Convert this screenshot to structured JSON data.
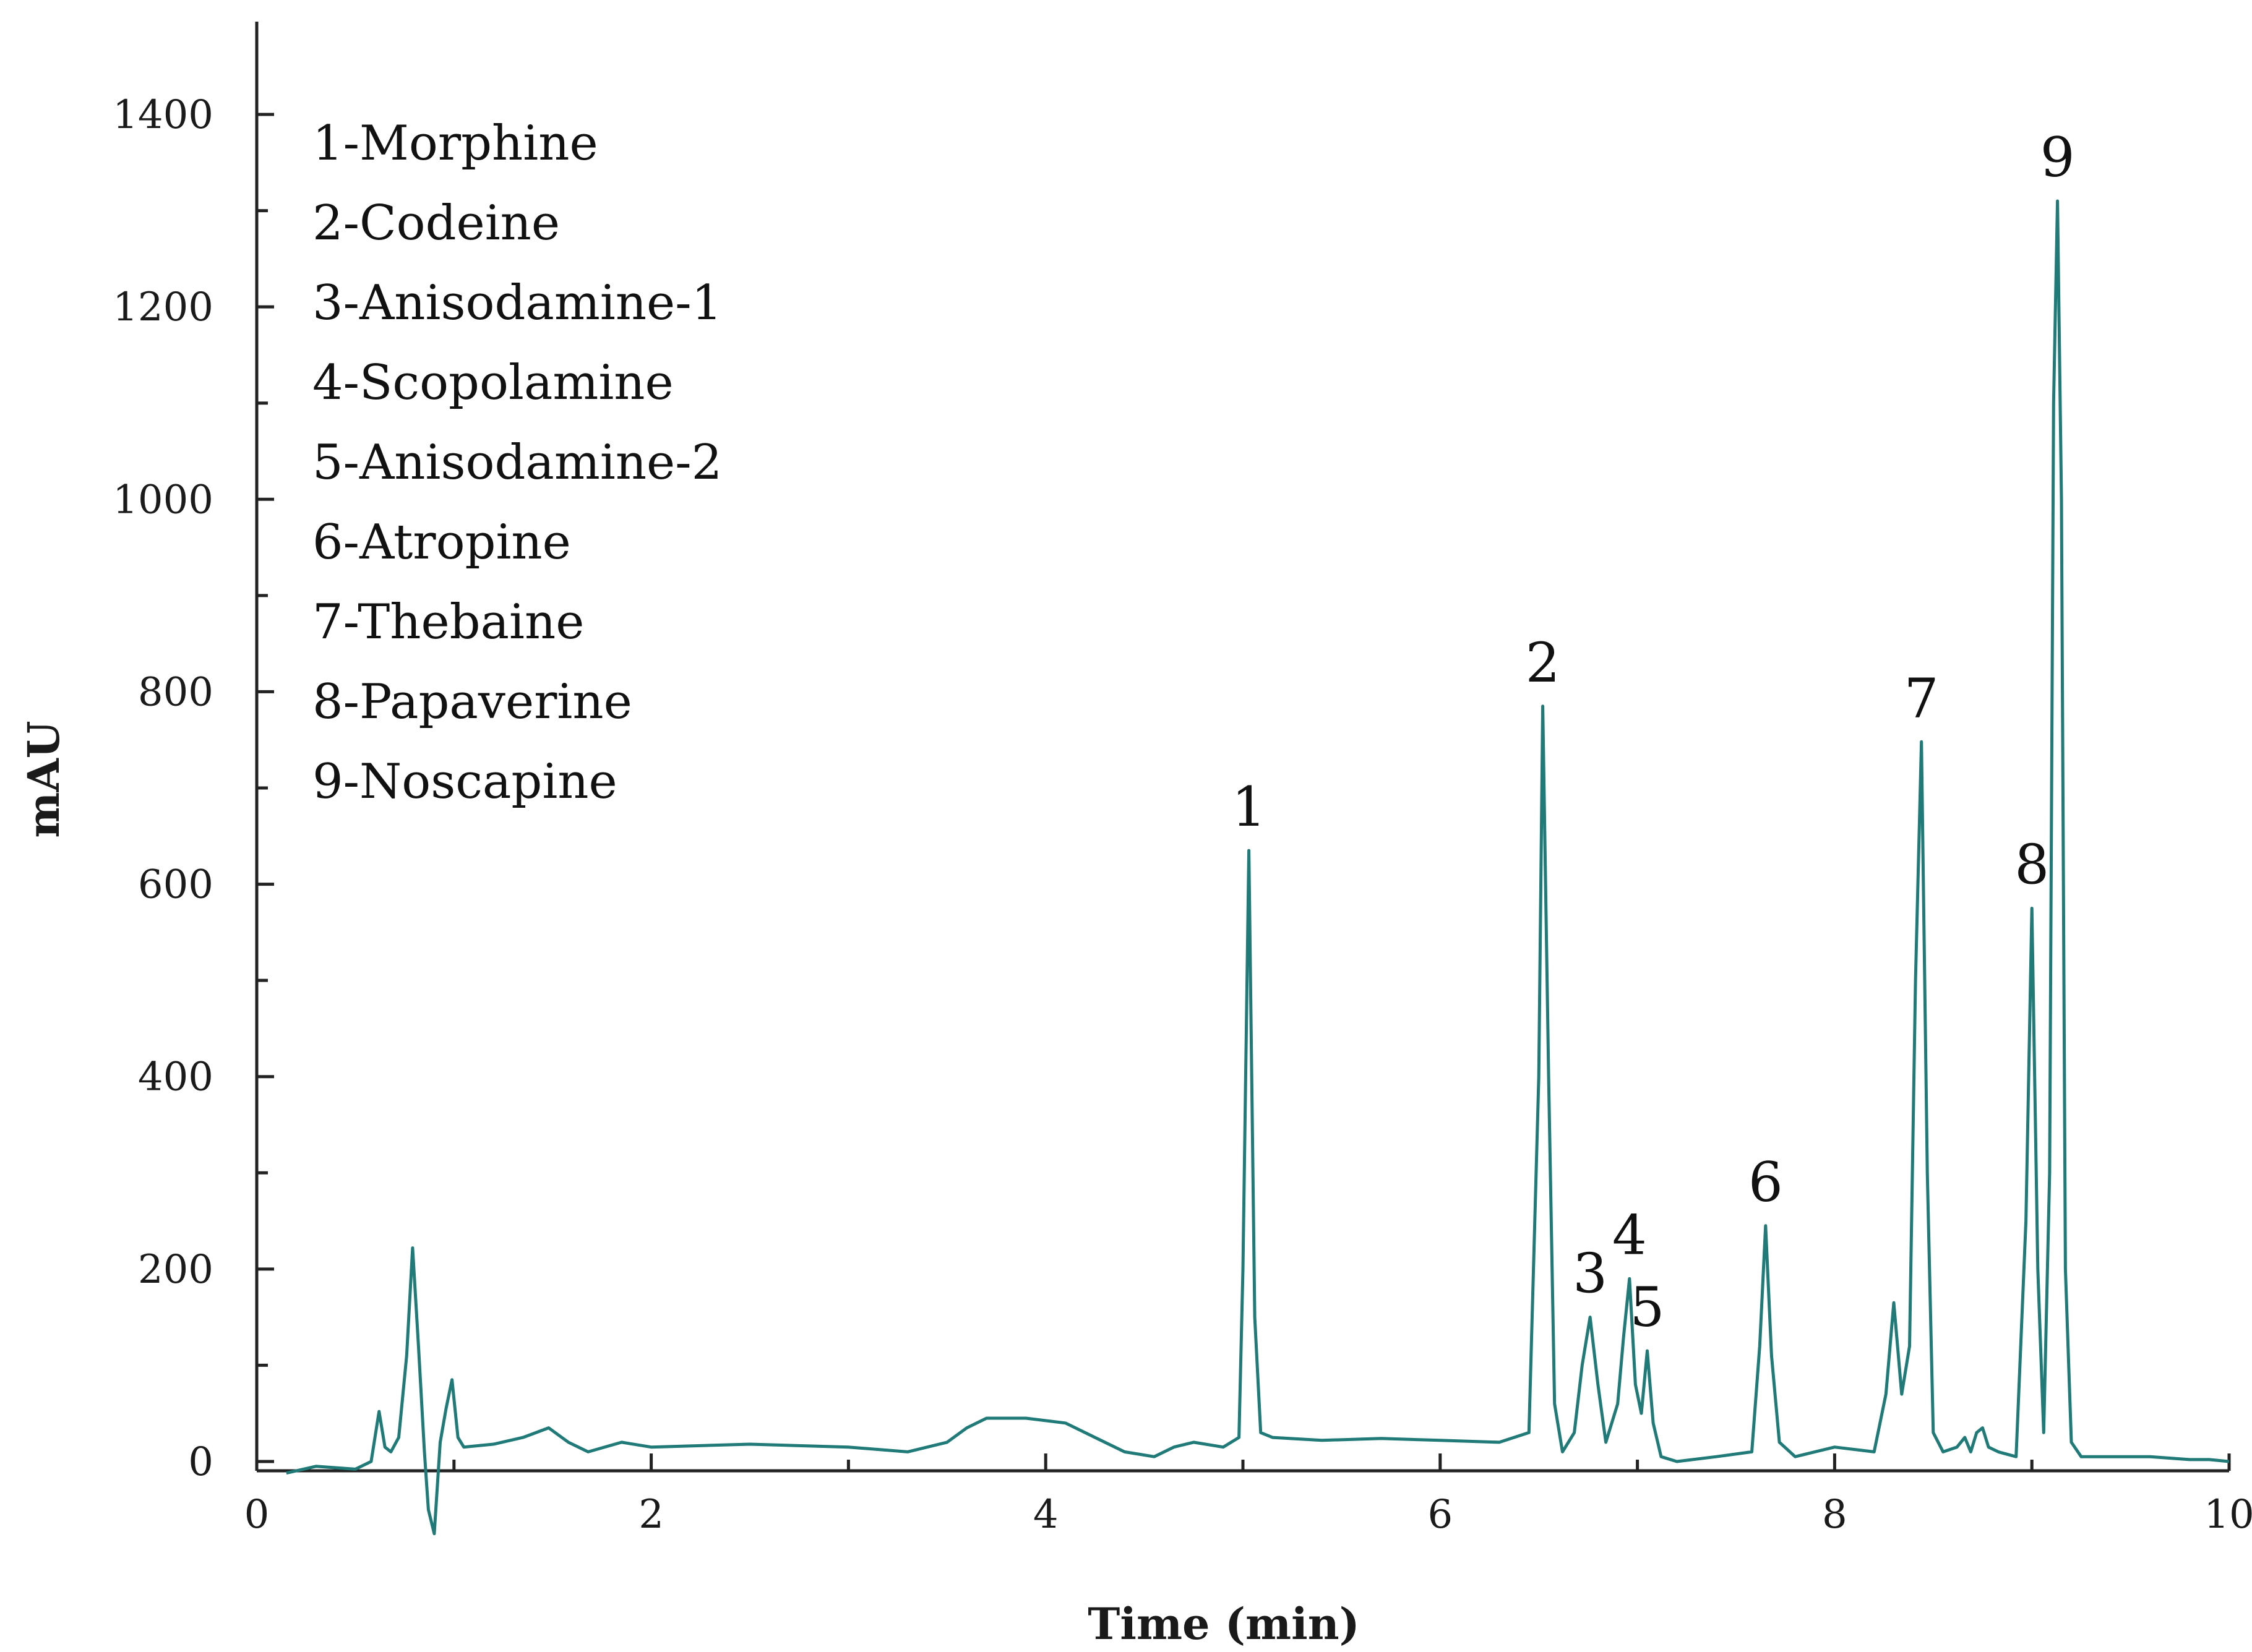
{
  "chart_data": {
    "type": "line",
    "title": "",
    "xlabel": "Time (min)",
    "ylabel": "mAU",
    "xlim": [
      0,
      10
    ],
    "ylim": [
      -10,
      1500
    ],
    "x_ticks": [
      0,
      2,
      4,
      6,
      8,
      10
    ],
    "x_minor_step": 1,
    "y_ticks": [
      0,
      200,
      400,
      600,
      800,
      1000,
      1200,
      1400
    ],
    "y_minor_step": 100,
    "line_color": "#1f7a78",
    "grid": false,
    "legend": {
      "placement": "top-left",
      "entries": [
        "1-Morphine",
        "2-Codeine",
        "3-Anisodamine-1",
        "4-Scopolamine",
        "5-Anisodamine-2",
        "6-Atropine",
        "7-Thebaine",
        "8-Papaverine",
        "9-Noscapine"
      ]
    },
    "peaks": [
      {
        "label": "1",
        "x": 5.03,
        "y": 635
      },
      {
        "label": "2",
        "x": 6.52,
        "y": 785
      },
      {
        "label": "3",
        "x": 6.76,
        "y": 150
      },
      {
        "label": "4",
        "x": 6.96,
        "y": 190
      },
      {
        "label": "5",
        "x": 7.05,
        "y": 115
      },
      {
        "label": "6",
        "x": 7.65,
        "y": 245
      },
      {
        "label": "7",
        "x": 8.44,
        "y": 748
      },
      {
        "label": "8",
        "x": 9.0,
        "y": 575
      },
      {
        "label": "9",
        "x": 9.13,
        "y": 1310
      }
    ],
    "series": [
      {
        "x": [
          0.15,
          0.3,
          0.5,
          0.58,
          0.62,
          0.65,
          0.68,
          0.72,
          0.76,
          0.79,
          0.82,
          0.85,
          0.87,
          0.9,
          0.93,
          0.96,
          0.99,
          1.02,
          1.05,
          1.2,
          1.35,
          1.48,
          1.58,
          1.68,
          1.85,
          2.0,
          2.5,
          3.0,
          3.3,
          3.5,
          3.6,
          3.7,
          3.9,
          4.1,
          4.25,
          4.4,
          4.55,
          4.65,
          4.75,
          4.9,
          4.98,
          5.0,
          5.03,
          5.06,
          5.09,
          5.15,
          5.4,
          5.7,
          6.0,
          6.3,
          6.45,
          6.5,
          6.52,
          6.55,
          6.58,
          6.62,
          6.68,
          6.72,
          6.76,
          6.8,
          6.84,
          6.9,
          6.93,
          6.96,
          6.99,
          7.02,
          7.05,
          7.08,
          7.12,
          7.2,
          7.4,
          7.58,
          7.62,
          7.65,
          7.68,
          7.72,
          7.8,
          8.0,
          8.2,
          8.26,
          8.3,
          8.34,
          8.38,
          8.41,
          8.44,
          8.47,
          8.5,
          8.55,
          8.62,
          8.66,
          8.69,
          8.72,
          8.75,
          8.78,
          8.83,
          8.92,
          8.97,
          9.0,
          9.03,
          9.06,
          9.09,
          9.11,
          9.13,
          9.15,
          9.17,
          9.2,
          9.25,
          9.4,
          9.6,
          9.8,
          9.9,
          10.0
        ],
        "y": [
          -12,
          -5,
          -8,
          0,
          52,
          15,
          10,
          25,
          110,
          222,
          120,
          10,
          -50,
          -75,
          20,
          55,
          85,
          25,
          15,
          18,
          25,
          35,
          20,
          10,
          20,
          15,
          18,
          15,
          10,
          20,
          35,
          45,
          45,
          40,
          25,
          10,
          5,
          15,
          20,
          15,
          25,
          200,
          635,
          150,
          30,
          25,
          22,
          24,
          22,
          20,
          30,
          400,
          785,
          400,
          60,
          10,
          30,
          100,
          150,
          80,
          20,
          60,
          130,
          190,
          80,
          50,
          115,
          40,
          5,
          0,
          5,
          10,
          120,
          245,
          110,
          20,
          5,
          15,
          10,
          70,
          165,
          70,
          120,
          500,
          748,
          300,
          30,
          10,
          15,
          25,
          10,
          30,
          35,
          15,
          10,
          5,
          250,
          575,
          200,
          30,
          300,
          1100,
          1310,
          1000,
          200,
          20,
          5,
          5,
          5,
          2,
          2,
          0
        ]
      }
    ]
  }
}
